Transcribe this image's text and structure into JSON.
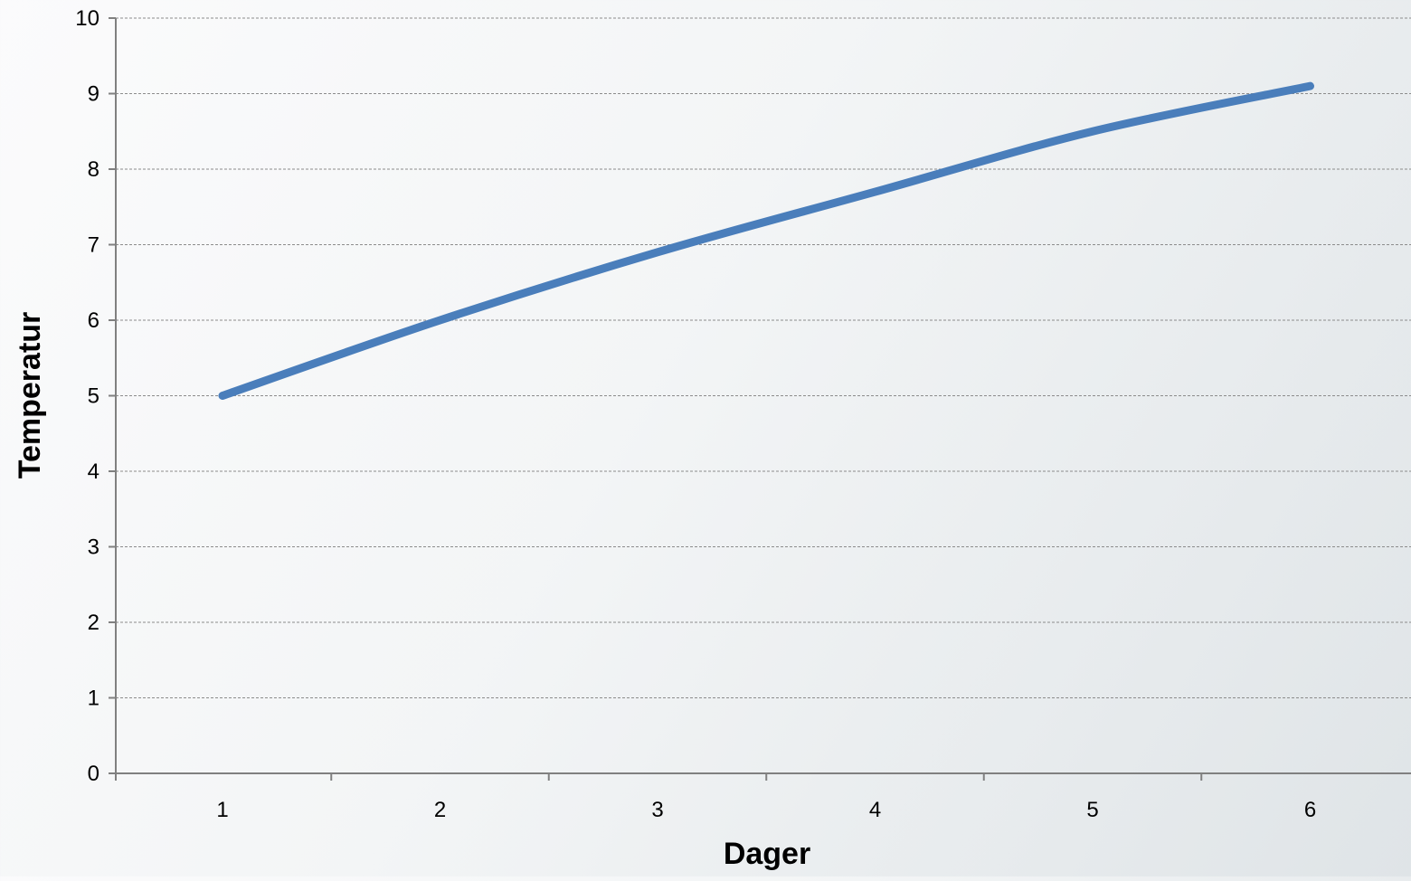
{
  "chart_data": {
    "type": "line",
    "title": "",
    "xlabel": "Dager",
    "ylabel": "Temperatur",
    "categories": [
      "1",
      "2",
      "3",
      "4",
      "5",
      "6"
    ],
    "series": [
      {
        "values": [
          5.0,
          6.0,
          6.9,
          7.7,
          8.5,
          9.1
        ]
      }
    ],
    "ylim": [
      0,
      10
    ],
    "yticks": [
      "0",
      "1",
      "2",
      "3",
      "4",
      "5",
      "6",
      "7",
      "8",
      "9",
      "10"
    ],
    "grid": "horizontal dashed",
    "legend": "none",
    "line_style": "smooth",
    "colors": {
      "series_line": "#4a7ebb",
      "axis": "#808080",
      "grid": "#8c8c8c"
    }
  }
}
